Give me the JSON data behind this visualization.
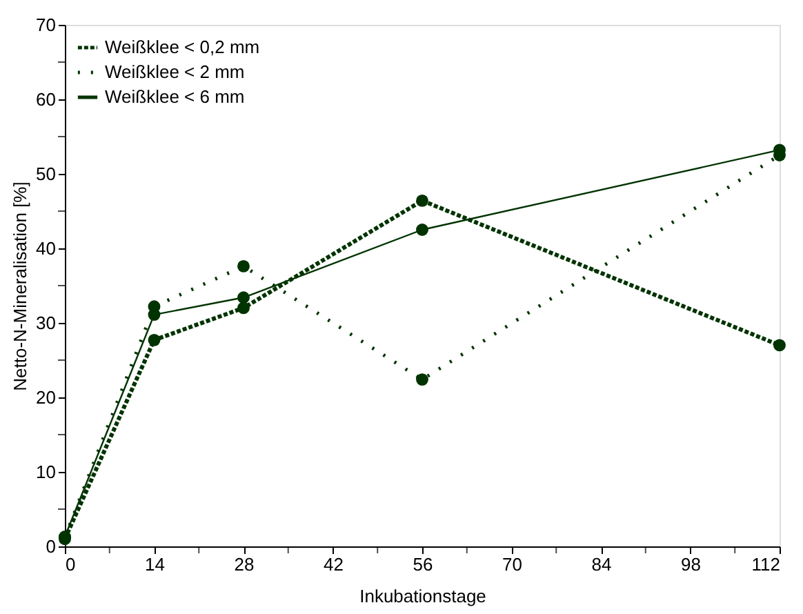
{
  "chart_data": {
    "type": "line",
    "xlabel": "Inkubationstage",
    "ylabel": "Netto-N-Mineralisation [%]",
    "x": [
      0,
      14,
      28,
      56,
      112
    ],
    "xlim": [
      0,
      112
    ],
    "xticks": [
      0,
      {
        "value": 7,
        "label": null
      },
      14,
      {
        "value": 21,
        "label": null
      },
      28,
      {
        "value": 35,
        "label": null
      },
      42,
      {
        "value": 49,
        "label": null
      },
      56,
      {
        "value": 63,
        "label": null
      },
      70,
      {
        "value": 77,
        "label": null
      },
      84,
      {
        "value": 91,
        "label": null
      },
      98,
      {
        "value": 105,
        "label": null
      },
      112
    ],
    "ylim": [
      0,
      70
    ],
    "yticks": [
      0,
      {
        "value": 5,
        "label": null
      },
      10,
      {
        "value": 15,
        "label": null
      },
      20,
      {
        "value": 25,
        "label": null
      },
      30,
      {
        "value": 35,
        "label": null
      },
      40,
      {
        "value": 45,
        "label": null
      },
      50,
      {
        "value": 55,
        "label": null
      },
      60,
      {
        "value": 65,
        "label": null
      },
      70
    ],
    "grid": false,
    "legend": "top left",
    "marker": "circle",
    "series": [
      {
        "name": "Weißklee < 0,2 mm",
        "color": "#003300",
        "line_style": "dashed",
        "values": [
          1.0,
          27.7,
          32.0,
          46.4,
          27.0
        ]
      },
      {
        "name": "Weißklee < 2 mm",
        "color": "#003300",
        "line_style": "dotted",
        "values": [
          1.2,
          32.2,
          37.6,
          22.4,
          52.5
        ]
      },
      {
        "name": "Weißklee < 6 mm",
        "color": "#003300",
        "line_style": "solid",
        "values": [
          1.3,
          31.1,
          33.4,
          42.5,
          53.2
        ]
      }
    ]
  }
}
